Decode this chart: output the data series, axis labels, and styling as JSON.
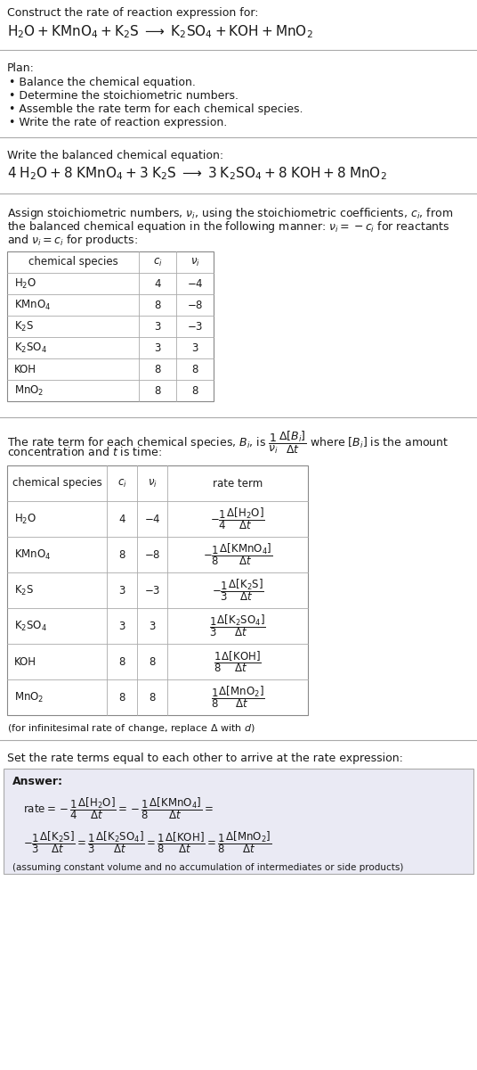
{
  "bg_color": "#ffffff",
  "text_color": "#1a1a1a",
  "title_line1": "Construct the rate of reaction expression for:",
  "plan_header": "Plan:",
  "plan_items": [
    "Balance the chemical equation.",
    "Determine the stoichiometric numbers.",
    "Assemble the rate term for each chemical species.",
    "Write the rate of reaction expression."
  ],
  "balanced_header": "Write the balanced chemical equation:",
  "assign_text_lines": [
    "Assign stoichiometric numbers, $\\nu_i$, using the stoichiometric coefficients, $c_i$, from",
    "the balanced chemical equation in the following manner: $\\nu_i = -c_i$ for reactants",
    "and $\\nu_i = c_i$ for products:"
  ],
  "table1_headers": [
    "chemical species",
    "$c_i$",
    "$\\nu_i$"
  ],
  "table1_rows": [
    [
      "$\\mathrm{H_2O}$",
      "4",
      "$-4$"
    ],
    [
      "$\\mathrm{KMnO_4}$",
      "8",
      "$-8$"
    ],
    [
      "$\\mathrm{K_2S}$",
      "3",
      "$-3$"
    ],
    [
      "$\\mathrm{K_2SO_4}$",
      "3",
      "3"
    ],
    [
      "KOH",
      "8",
      "8"
    ],
    [
      "$\\mathrm{MnO_2}$",
      "8",
      "8"
    ]
  ],
  "rate_text_lines": [
    "The rate term for each chemical species, $B_i$, is $\\dfrac{1}{\\nu_i}\\dfrac{\\Delta[B_i]}{\\Delta t}$ where $[B_i]$ is the amount",
    "concentration and $t$ is time:"
  ],
  "table2_headers": [
    "chemical species",
    "$c_i$",
    "$\\nu_i$",
    "rate term"
  ],
  "table2_rows": [
    [
      "$\\mathrm{H_2O}$",
      "4",
      "$-4$",
      "$-\\dfrac{1}{4}\\dfrac{\\Delta[\\mathrm{H_2O}]}{\\Delta t}$"
    ],
    [
      "$\\mathrm{KMnO_4}$",
      "8",
      "$-8$",
      "$-\\dfrac{1}{8}\\dfrac{\\Delta[\\mathrm{KMnO_4}]}{\\Delta t}$"
    ],
    [
      "$\\mathrm{K_2S}$",
      "3",
      "$-3$",
      "$-\\dfrac{1}{3}\\dfrac{\\Delta[\\mathrm{K_2S}]}{\\Delta t}$"
    ],
    [
      "$\\mathrm{K_2SO_4}$",
      "3",
      "3",
      "$\\dfrac{1}{3}\\dfrac{\\Delta[\\mathrm{K_2SO_4}]}{\\Delta t}$"
    ],
    [
      "KOH",
      "8",
      "8",
      "$\\dfrac{1}{8}\\dfrac{\\Delta[\\mathrm{KOH}]}{\\Delta t}$"
    ],
    [
      "$\\mathrm{MnO_2}$",
      "8",
      "8",
      "$\\dfrac{1}{8}\\dfrac{\\Delta[\\mathrm{MnO_2}]}{ \\Delta t}$"
    ]
  ],
  "infinitesimal_note": "(for infinitesimal rate of change, replace $\\Delta$ with $d$)",
  "set_rate_text": "Set the rate terms equal to each other to arrive at the rate expression:",
  "answer_box_color": "#eaeaf4",
  "answer_label": "Answer:",
  "answer_note": "(assuming constant volume and no accumulation of intermediates or side products)",
  "separator_color": "#aaaaaa",
  "table_border_color": "#888888",
  "table_line_color": "#aaaaaa"
}
